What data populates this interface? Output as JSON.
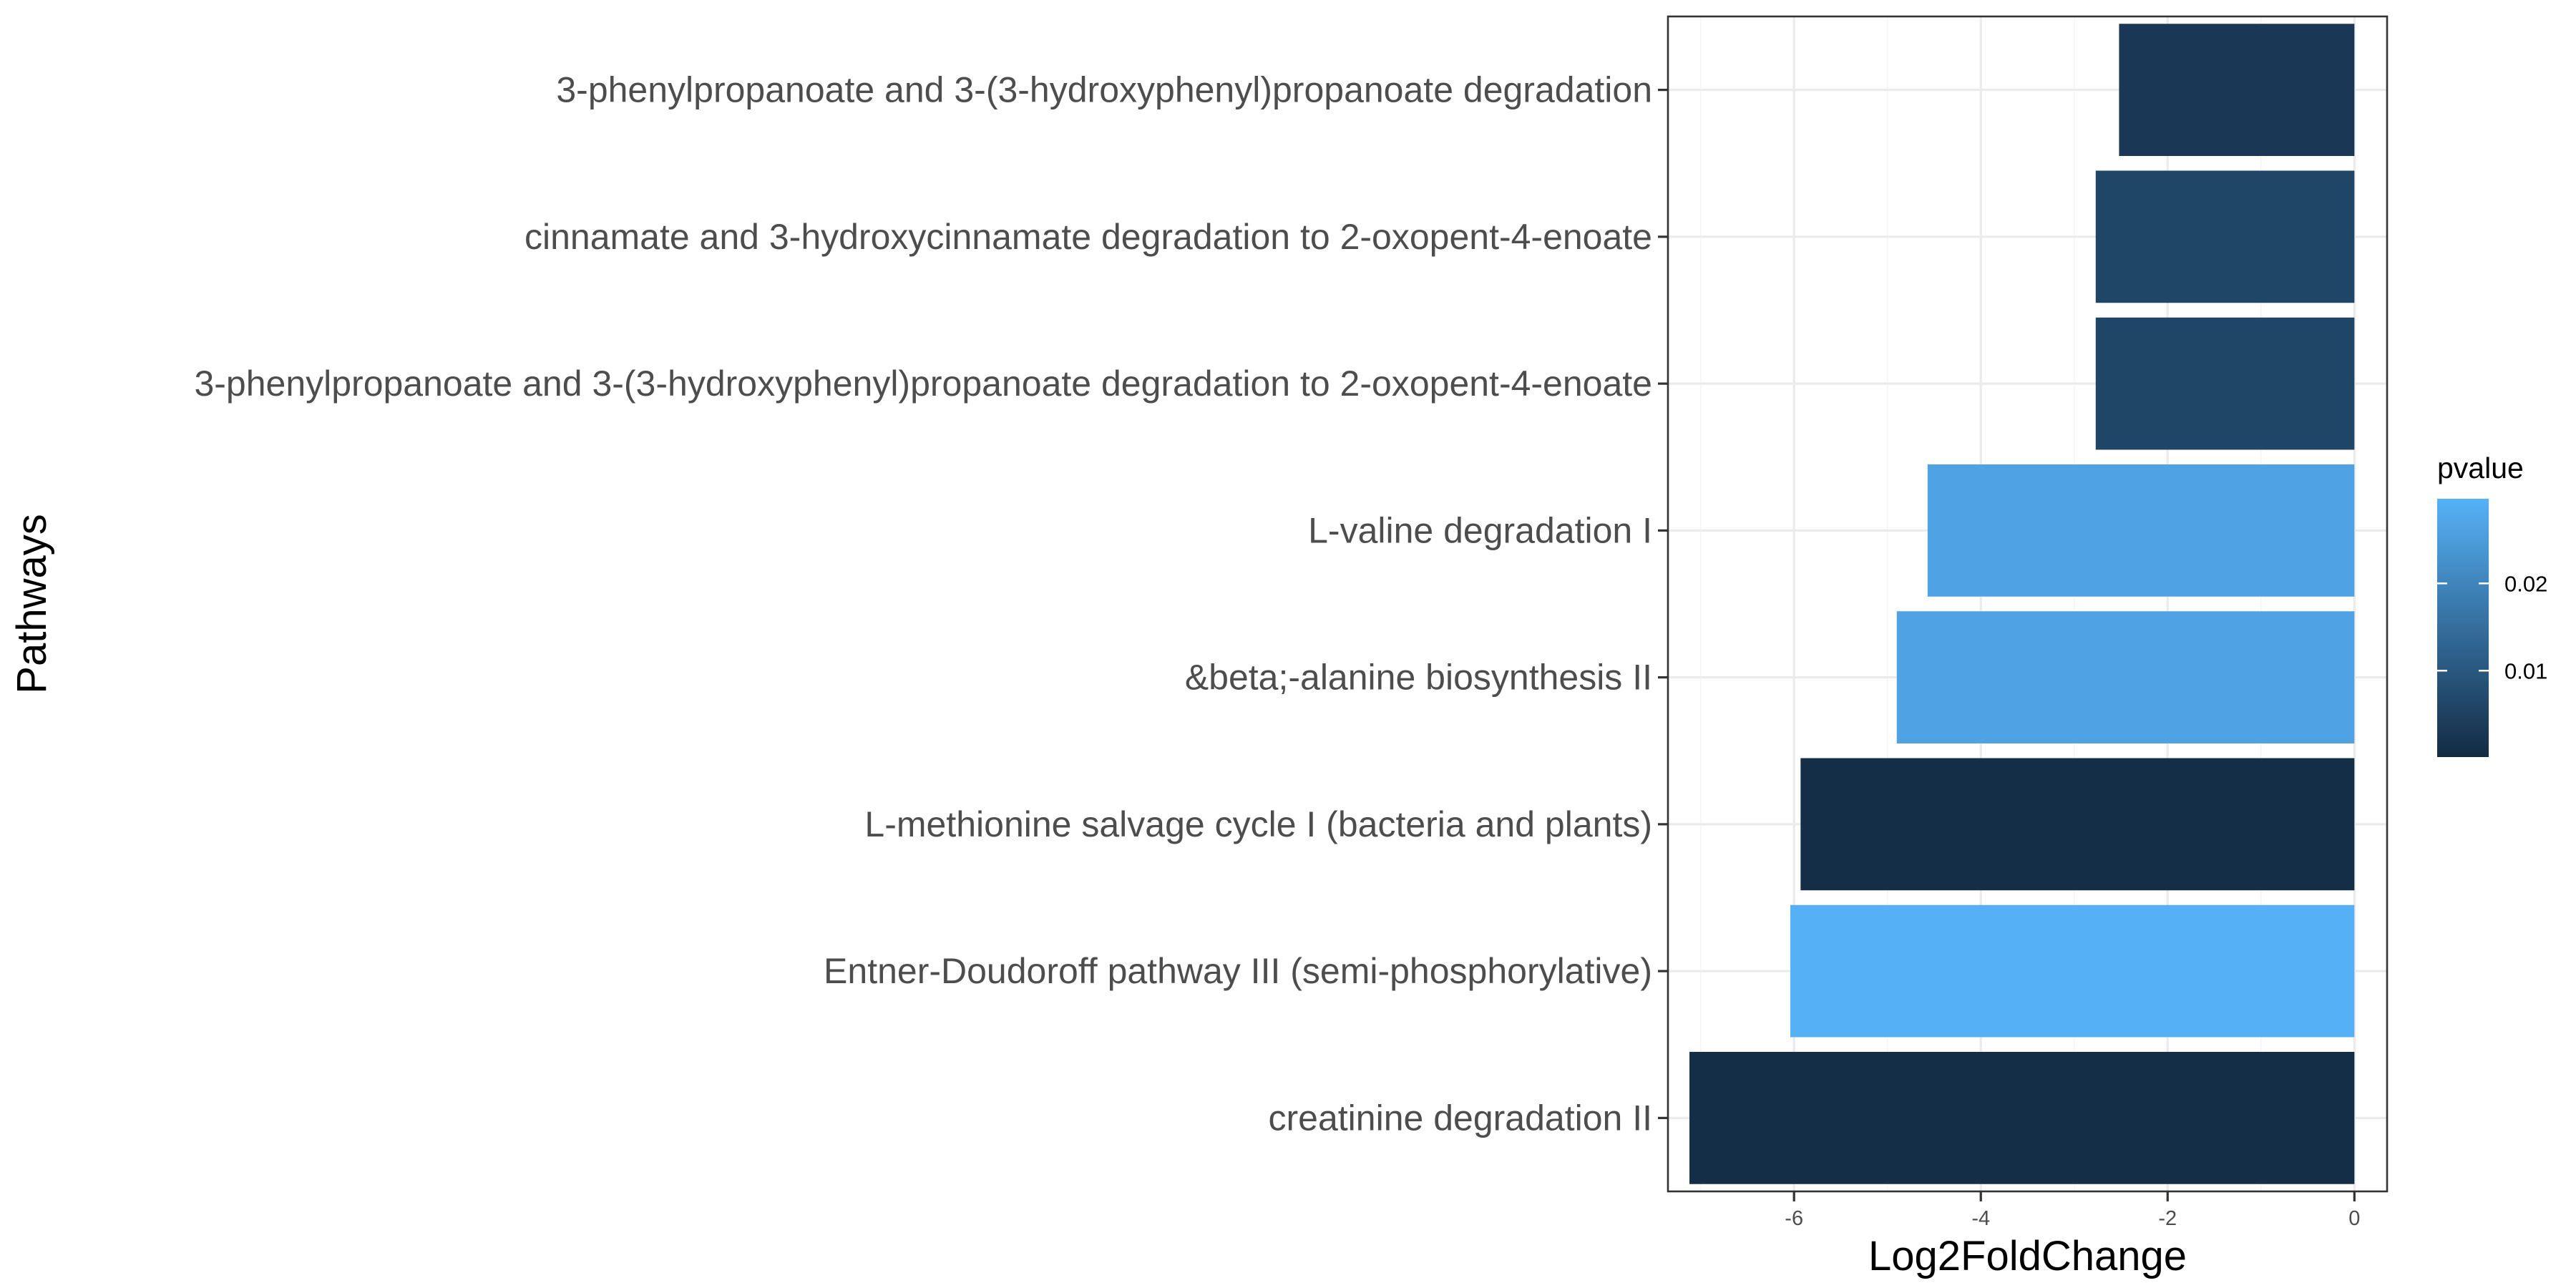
{
  "chart_data": {
    "type": "bar",
    "orientation": "horizontal",
    "xlabel": "Log2FoldChange",
    "ylabel": "Pathways",
    "xlim": [
      -7.35,
      0.35
    ],
    "xticks": [
      -6,
      -4,
      -2,
      0
    ],
    "xtick_labels": [
      "-6",
      "-4",
      "-2",
      "0"
    ],
    "grid": true,
    "categories": [
      "3-phenylpropanoate and 3-(3-hydroxyphenyl)propanoate degradation",
      "cinnamate and 3-hydroxycinnamate degradation to 2-oxopent-4-enoate",
      "3-phenylpropanoate and 3-(3-hydroxyphenyl)propanoate degradation to 2-oxopent-4-enoate",
      "L-valine degradation I",
      "&beta;-alanine biosynthesis II",
      "L-methionine salvage cycle I (bacteria and plants)",
      "Entner-Doudoroff pathway III (semi-phosphorylative)",
      "creatinine degradation II"
    ],
    "values": [
      -2.52,
      -2.77,
      -2.77,
      -4.57,
      -4.9,
      -5.93,
      -6.04,
      -7.12
    ],
    "pvalues": [
      0.003,
      0.006,
      0.006,
      0.0265,
      0.0265,
      0.0008,
      0.0295,
      0.0008
    ],
    "legend": {
      "title": "pvalue",
      "position": "right",
      "ticks": [
        0.01,
        0.02
      ],
      "tick_labels": [
        "0.01",
        "0.02"
      ],
      "range": [
        0.0001,
        0.0297
      ],
      "color_low": "#132b43",
      "color_high": "#56b1f7"
    }
  }
}
